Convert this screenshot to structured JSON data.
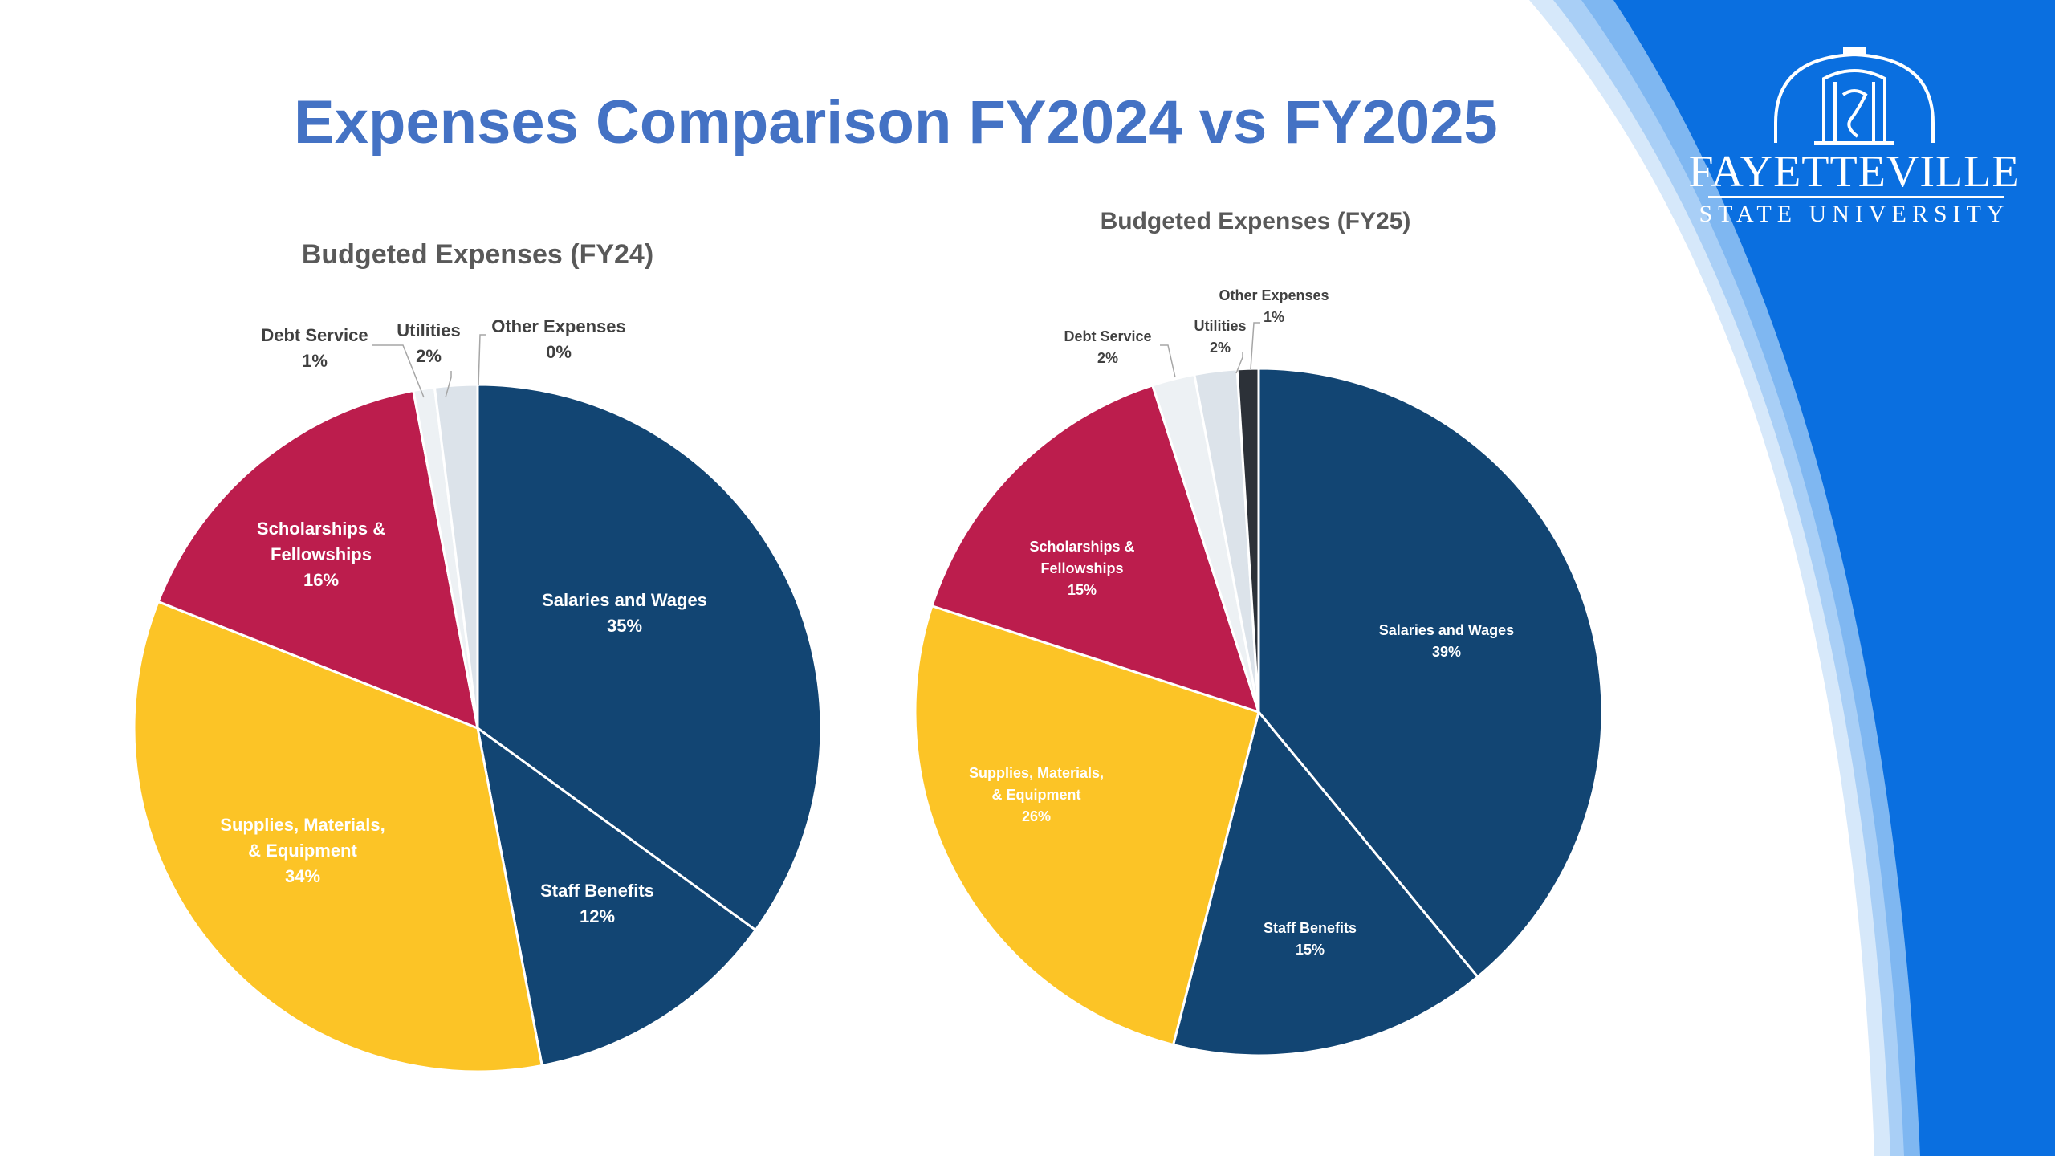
{
  "slide": {
    "title": "Expenses Comparison FY2024 vs FY2025",
    "title_color": "#4472C4",
    "background_color": "#FFFFFF",
    "brand_blue": "#0A6FE0",
    "swoosh_light_colors": [
      "#D6E8FA",
      "#A9CFF6",
      "#7FB7F1"
    ]
  },
  "logo": {
    "name": "FAYETTEVILLE",
    "subtitle": "STATE UNIVERSITY",
    "icon": "university-building-icon",
    "color": "#FFFFFF"
  },
  "chart_data": [
    {
      "type": "pie",
      "title": "Budgeted Expenses (FY24)",
      "slices": [
        {
          "name": "Salaries and Wages",
          "value": 35,
          "display": "35%",
          "color": "#124573",
          "label_color": "#FFFFFF",
          "label_placement": "inside"
        },
        {
          "name": "Staff Benefits",
          "value": 12,
          "display": "12%",
          "color": "#124573",
          "label_color": "#FFFFFF",
          "label_placement": "inside"
        },
        {
          "name": "Supplies, Materials, & Equipment",
          "value": 34,
          "display": "34%",
          "color": "#FCC426",
          "label_color": "#FFFFFF",
          "label_placement": "inside"
        },
        {
          "name": "Scholarships & Fellowships",
          "value": 16,
          "display": "16%",
          "color": "#BC1D4D",
          "label_color": "#FFFFFF",
          "label_placement": "inside"
        },
        {
          "name": "Debt Service",
          "value": 1,
          "display": "1%",
          "color": "#EDF1F4",
          "label_color": "#404040",
          "label_placement": "callout"
        },
        {
          "name": "Utilities",
          "value": 2,
          "display": "2%",
          "color": "#DCE3EA",
          "label_color": "#404040",
          "label_placement": "callout"
        },
        {
          "name": "Other Expenses",
          "value": 0,
          "display": "0%",
          "color": "#2C3138",
          "label_color": "#404040",
          "label_placement": "callout"
        }
      ]
    },
    {
      "type": "pie",
      "title": "Budgeted Expenses (FY25)",
      "slices": [
        {
          "name": "Salaries and Wages",
          "value": 39,
          "display": "39%",
          "color": "#124573",
          "label_color": "#FFFFFF",
          "label_placement": "inside"
        },
        {
          "name": "Staff Benefits",
          "value": 15,
          "display": "15%",
          "color": "#124573",
          "label_color": "#FFFFFF",
          "label_placement": "inside"
        },
        {
          "name": "Supplies, Materials, & Equipment",
          "value": 26,
          "display": "26%",
          "color": "#FCC426",
          "label_color": "#FFFFFF",
          "label_placement": "inside"
        },
        {
          "name": "Scholarships & Fellowships",
          "value": 15,
          "display": "15%",
          "color": "#BC1D4D",
          "label_color": "#FFFFFF",
          "label_placement": "inside"
        },
        {
          "name": "Debt Service",
          "value": 2,
          "display": "2%",
          "color": "#EDF1F4",
          "label_color": "#404040",
          "label_placement": "callout"
        },
        {
          "name": "Utilities",
          "value": 2,
          "display": "2%",
          "color": "#DCE3EA",
          "label_color": "#404040",
          "label_placement": "callout"
        },
        {
          "name": "Other Expenses",
          "value": 1,
          "display": "1%",
          "color": "#2C3138",
          "label_color": "#404040",
          "label_placement": "callout"
        }
      ]
    }
  ]
}
